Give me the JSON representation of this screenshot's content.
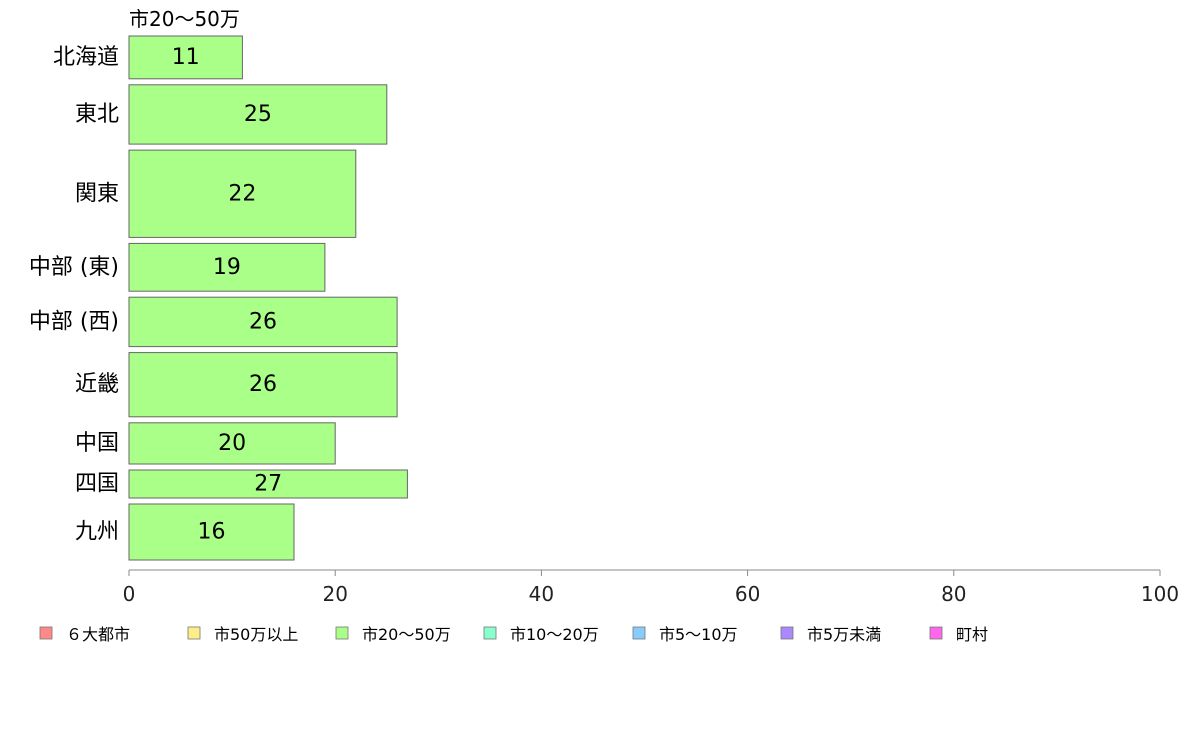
{
  "chart_data": {
    "type": "bar",
    "orientation": "horizontal",
    "subtitle": "市20〜50万",
    "categories": [
      "北海道",
      "東北",
      "関東",
      "中部 (東)",
      "中部 (西)",
      "近畿",
      "中国",
      "四国",
      "九州"
    ],
    "relative_weights": [
      1.3,
      1.8,
      2.65,
      1.45,
      1.5,
      1.95,
      1.25,
      0.85,
      1.7
    ],
    "values": [
      11,
      25,
      22,
      19,
      26,
      26,
      20,
      27,
      16
    ],
    "xlim": [
      0,
      100
    ],
    "xticks": [
      0,
      20,
      40,
      60,
      80,
      100
    ],
    "grid": false,
    "bar_color": "#aaff88",
    "bar_stroke": "#666666",
    "legend": {
      "placement": "bottom",
      "items": [
        {
          "label": "６大都市",
          "color": "#ff8888"
        },
        {
          "label": "市50万以上",
          "color": "#ffee88"
        },
        {
          "label": "市20〜50万",
          "color": "#aaff88"
        },
        {
          "label": "市10〜20万",
          "color": "#88ffcc"
        },
        {
          "label": "市5〜10万",
          "color": "#88ccff"
        },
        {
          "label": "市5万未満",
          "color": "#aa88ff"
        },
        {
          "label": "町村",
          "color": "#ff66ee"
        }
      ]
    }
  }
}
